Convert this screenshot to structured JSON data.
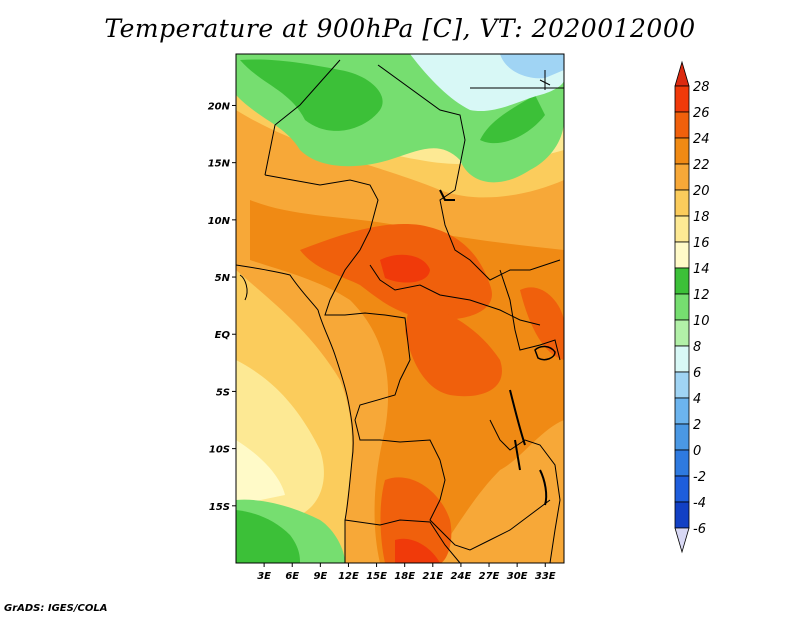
{
  "title": "Temperature at 900hPa [C], VT: 2020012000",
  "footer": "GrADS: IGES/COLA",
  "map": {
    "lat_labels": [
      "20N",
      "15N",
      "10N",
      "5N",
      "EQ",
      "5S",
      "10S",
      "15S"
    ],
    "lon_labels": [
      "3E",
      "6E",
      "9E",
      "12E",
      "15E",
      "18E",
      "21E",
      "24E",
      "27E",
      "30E",
      "33E"
    ],
    "lat_range": [
      -20,
      24.5
    ],
    "lon_range": [
      0,
      35
    ]
  },
  "colorbar": {
    "levels": [
      "28",
      "26",
      "24",
      "22",
      "20",
      "18",
      "16",
      "14",
      "12",
      "10",
      "8",
      "6",
      "4",
      "2",
      "0",
      "-2",
      "-4",
      "-6"
    ],
    "colors": [
      "#f03a0a",
      "#f0600c",
      "#f08a14",
      "#f7a838",
      "#fbcc5c",
      "#fde994",
      "#fffac8",
      "#3cc038",
      "#76de70",
      "#b2f0a8",
      "#d8f8f6",
      "#a0d4f4",
      "#6cb4ee",
      "#4a98e4",
      "#2e7ae0",
      "#1e5edc",
      "#1240c4",
      "#0c1a80"
    ],
    "top_color": "#dc2a10",
    "bottom_color": "#d8d8f4"
  }
}
